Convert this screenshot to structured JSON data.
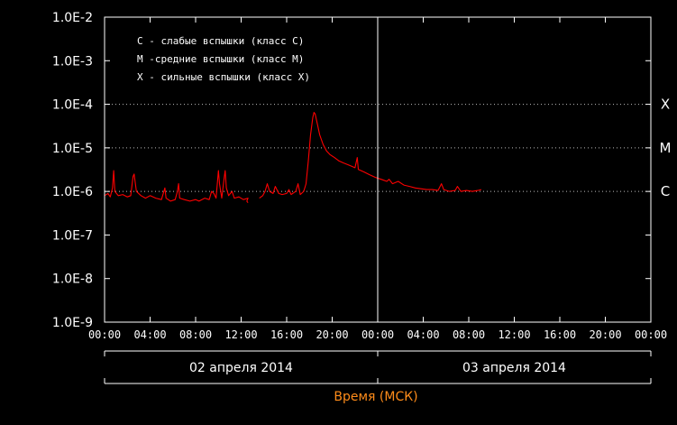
{
  "chart_data": {
    "type": "line",
    "title": "",
    "xlabel": "Время (МСК)",
    "ylabel": "",
    "yscale": "log",
    "ylim": [
      1e-09,
      0.01
    ],
    "y_ticks": [
      "1.0E-9",
      "1.0E-8",
      "1.0E-7",
      "1.0E-6",
      "1.0E-5",
      "1.0E-4",
      "1.0E-3",
      "1.0E-2"
    ],
    "x_ticks": [
      "00:00",
      "04:00",
      "08:00",
      "12:00",
      "16:00",
      "20:00",
      "00:00",
      "04:00",
      "08:00",
      "12:00",
      "16:00",
      "20:00",
      "00:00"
    ],
    "xlim_hours": [
      0,
      48
    ],
    "dates": [
      {
        "label": "02 апреля 2014",
        "start_hour": 0,
        "end_hour": 24
      },
      {
        "label": "03 апреля 2014",
        "start_hour": 24,
        "end_hour": 48
      }
    ],
    "class_lines": [
      {
        "label": "X",
        "value": 0.0001
      },
      {
        "label": "M",
        "value": 1e-05
      },
      {
        "label": "C",
        "value": 1e-06
      }
    ],
    "legend": [
      "C - слабые вспышки (класс C)",
      "M -средние вспышки (класс M)",
      "X - сильные вспышки (класс X)"
    ],
    "line_color": "#ff0000",
    "series": [
      {
        "values": [
          [
            0.0,
            8e-07
          ],
          [
            0.3,
            9e-07
          ],
          [
            0.5,
            7.5e-07
          ],
          [
            0.7,
            1.2e-06
          ],
          [
            0.8,
            3e-06
          ],
          [
            0.9,
            1e-06
          ],
          [
            1.2,
            8e-07
          ],
          [
            1.6,
            8.5e-07
          ],
          [
            2.0,
            7.5e-07
          ],
          [
            2.3,
            8e-07
          ],
          [
            2.5,
            2.2e-06
          ],
          [
            2.6,
            2.5e-06
          ],
          [
            2.8,
            1e-06
          ],
          [
            3.2,
            8e-07
          ],
          [
            3.6,
            7e-07
          ],
          [
            4.0,
            8e-07
          ],
          [
            4.5,
            7e-07
          ],
          [
            5.0,
            6.5e-07
          ],
          [
            5.3,
            1.2e-06
          ],
          [
            5.4,
            7e-07
          ],
          [
            5.8,
            6e-07
          ],
          [
            6.2,
            6.5e-07
          ],
          [
            6.4,
            1e-06
          ],
          [
            6.5,
            1.5e-06
          ],
          [
            6.6,
            7e-07
          ],
          [
            7.0,
            6.5e-07
          ],
          [
            7.5,
            6e-07
          ],
          [
            8.0,
            6.5e-07
          ],
          [
            8.3,
            6e-07
          ],
          [
            8.8,
            7e-07
          ],
          [
            9.2,
            6.5e-07
          ],
          [
            9.4,
            1e-06
          ],
          [
            9.6,
            9e-07
          ],
          [
            9.8,
            7e-07
          ],
          [
            10.0,
            3e-06
          ],
          [
            10.1,
            1.5e-06
          ],
          [
            10.3,
            7e-07
          ],
          [
            10.5,
            2e-06
          ],
          [
            10.6,
            3e-06
          ],
          [
            10.7,
            1.2e-06
          ],
          [
            10.9,
            8e-07
          ],
          [
            11.2,
            1e-06
          ],
          [
            11.4,
            7e-07
          ],
          [
            11.8,
            7.5e-07
          ],
          [
            12.2,
            6.5e-07
          ],
          [
            12.6,
            7e-07
          ],
          [
            12.5,
            6e-07
          ],
          [
            12.6,
            5.5e-07
          ],
          null,
          [
            13.6,
            7e-07
          ],
          [
            13.9,
            8e-07
          ],
          [
            14.1,
            1e-06
          ],
          [
            14.3,
            1.5e-06
          ],
          [
            14.5,
            1e-06
          ],
          [
            14.8,
            9e-07
          ],
          [
            15.0,
            1.3e-06
          ],
          [
            15.3,
            9e-07
          ],
          [
            15.6,
            8.5e-07
          ],
          [
            16.0,
            9e-07
          ],
          [
            16.2,
            1.1e-06
          ],
          [
            16.4,
            8.5e-07
          ],
          [
            16.8,
            1e-06
          ],
          [
            17.0,
            1.5e-06
          ],
          [
            17.2,
            8.5e-07
          ],
          [
            17.5,
            1e-06
          ],
          [
            17.7,
            1.5e-06
          ],
          [
            17.9,
            5e-06
          ],
          [
            18.1,
            2e-05
          ],
          [
            18.3,
            5e-05
          ],
          [
            18.4,
            6.5e-05
          ],
          [
            18.5,
            6e-05
          ],
          [
            18.7,
            3.5e-05
          ],
          [
            18.9,
            2e-05
          ],
          [
            19.2,
            1.2e-05
          ],
          [
            19.5,
            8.5e-06
          ],
          [
            19.8,
            7e-06
          ],
          [
            20.2,
            6e-06
          ],
          [
            20.6,
            5e-06
          ],
          [
            21.0,
            4.5e-06
          ],
          [
            21.5,
            4e-06
          ],
          [
            22.0,
            3.5e-06
          ],
          [
            22.2,
            6e-06
          ],
          [
            22.3,
            3.2e-06
          ],
          [
            22.8,
            2.8e-06
          ],
          [
            23.3,
            2.4e-06
          ],
          [
            23.8,
            2.1e-06
          ],
          [
            24.3,
            1.9e-06
          ],
          [
            24.8,
            1.7e-06
          ],
          [
            25.0,
            1.9e-06
          ],
          [
            25.3,
            1.5e-06
          ],
          [
            25.8,
            1.7e-06
          ],
          [
            26.3,
            1.4e-06
          ],
          [
            26.8,
            1.3e-06
          ],
          [
            27.3,
            1.2e-06
          ],
          [
            27.8,
            1.15e-06
          ],
          [
            28.3,
            1.1e-06
          ],
          [
            28.8,
            1.1e-06
          ],
          [
            29.3,
            1.05e-06
          ],
          [
            29.6,
            1.5e-06
          ],
          [
            29.8,
            1.1e-06
          ],
          [
            30.3,
            1e-06
          ],
          [
            30.8,
            1.05e-06
          ],
          [
            31.0,
            1.3e-06
          ],
          [
            31.3,
            1e-06
          ],
          [
            31.8,
            1.05e-06
          ],
          [
            32.3,
            1e-06
          ],
          [
            32.8,
            1.05e-06
          ],
          [
            33.1,
            1.1e-06
          ]
        ]
      }
    ]
  }
}
